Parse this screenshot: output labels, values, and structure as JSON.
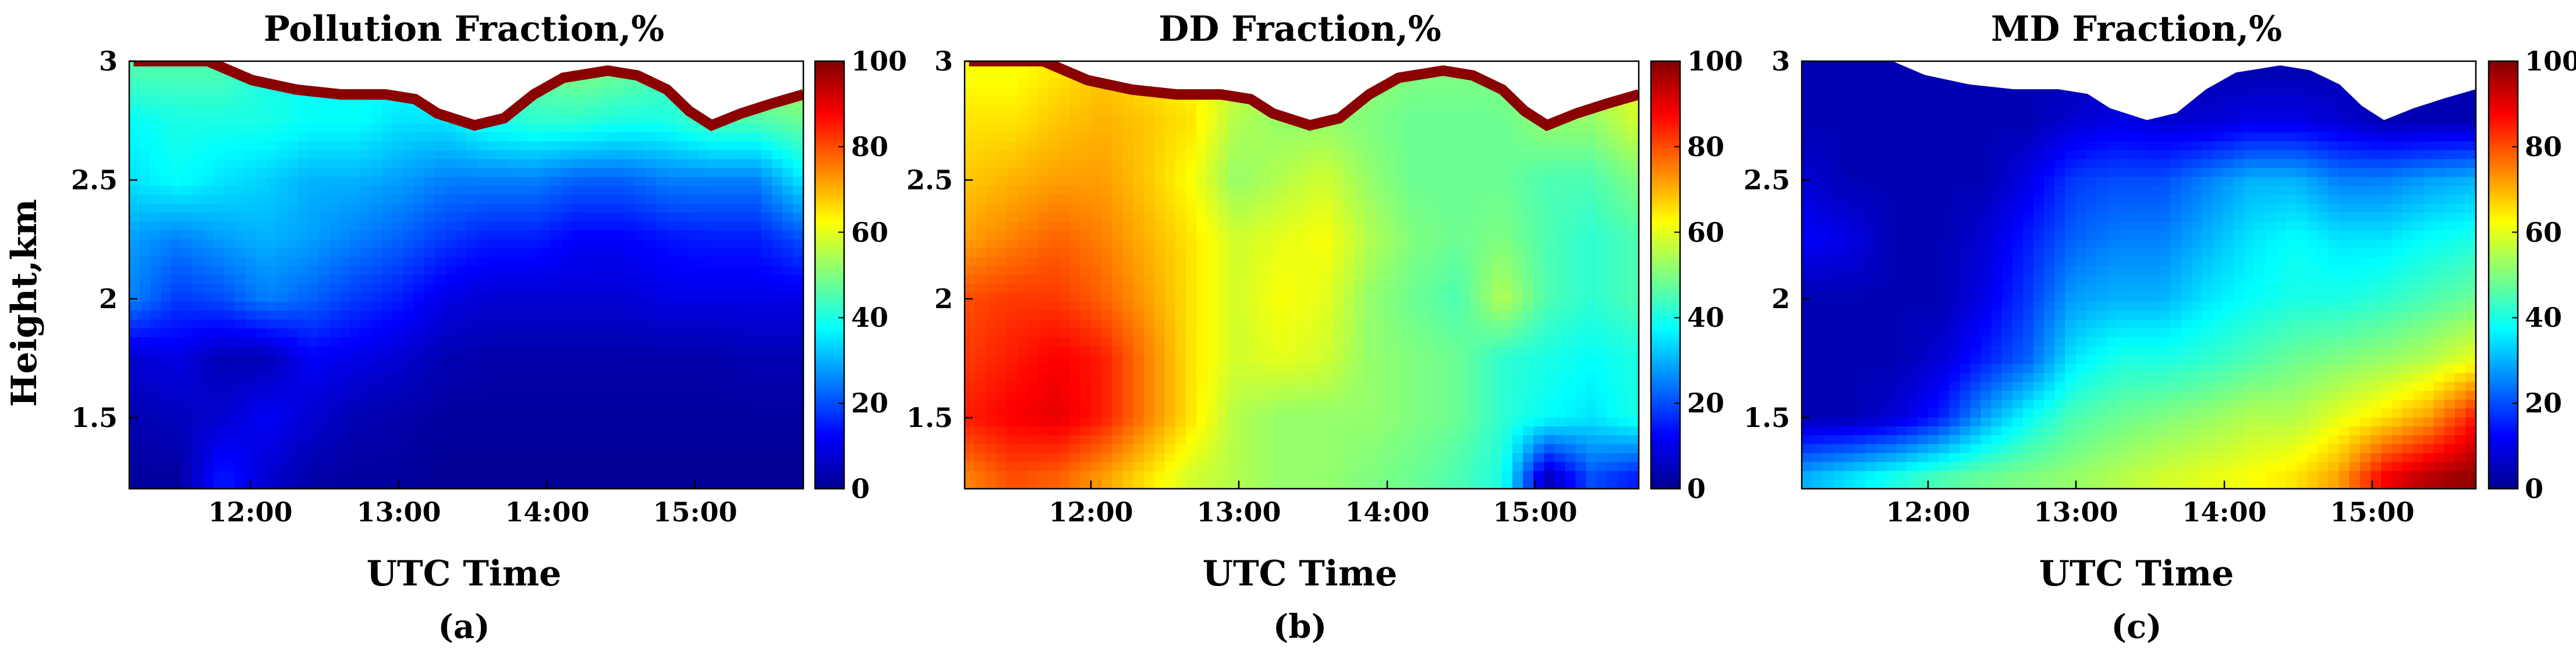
{
  "figure": {
    "y_axis_label": "Height,km",
    "x_axis_label": "UTC Time"
  },
  "chart_data": [
    {
      "type": "heatmap",
      "title": "Pollution Fraction,%",
      "panel_label": "(a)",
      "xlabel": "UTC Time",
      "ylabel": "Height,km",
      "x_ticks": [
        "12:00",
        "13:00",
        "14:00",
        "15:00"
      ],
      "x_tick_hours": [
        12,
        13,
        14,
        15
      ],
      "xlim_hours": [
        11.17,
        15.72
      ],
      "y_ticks": [
        1.5,
        2,
        2.5,
        3
      ],
      "ylim": [
        1.2,
        3.0
      ],
      "colorbar_ticks": [
        0,
        20,
        40,
        60,
        80,
        100
      ],
      "colorbar_range": [
        0,
        100
      ],
      "colormap": "jet",
      "value_grid": {
        "times": [
          11.2,
          11.5,
          11.8,
          12.1,
          12.4,
          12.7,
          13.0,
          13.3,
          13.6,
          13.9,
          14.2,
          14.5,
          14.8,
          15.1,
          15.4,
          15.7
        ],
        "heights": [
          1.25,
          1.5,
          1.75,
          2.0,
          2.25,
          2.5,
          2.75,
          2.95
        ],
        "values": [
          [
            3,
            3,
            15,
            8,
            4,
            3,
            3,
            2,
            2,
            2,
            2,
            2,
            2,
            2,
            2,
            2
          ],
          [
            5,
            6,
            8,
            12,
            8,
            5,
            4,
            3,
            3,
            3,
            3,
            3,
            3,
            3,
            3,
            3
          ],
          [
            8,
            10,
            5,
            5,
            12,
            10,
            8,
            5,
            4,
            4,
            4,
            4,
            4,
            4,
            5,
            5
          ],
          [
            25,
            18,
            20,
            25,
            22,
            18,
            15,
            10,
            8,
            8,
            8,
            8,
            10,
            10,
            10,
            10
          ],
          [
            28,
            25,
            28,
            30,
            28,
            25,
            22,
            18,
            15,
            15,
            12,
            12,
            14,
            15,
            15,
            20
          ],
          [
            35,
            38,
            35,
            33,
            30,
            30,
            28,
            25,
            25,
            25,
            22,
            22,
            25,
            25,
            25,
            35
          ],
          [
            38,
            40,
            40,
            40,
            38,
            38,
            35,
            35,
            40,
            42,
            42,
            40,
            40,
            45,
            45,
            48
          ],
          [
            45,
            45,
            45,
            40,
            38,
            38,
            38,
            38,
            45,
            48,
            50,
            48,
            45,
            50,
            55,
            55
          ]
        ]
      },
      "top_boundary_km": [
        [
          11.2,
          3.0
        ],
        [
          11.7,
          3.0
        ],
        [
          12.0,
          2.92
        ],
        [
          12.3,
          2.88
        ],
        [
          12.6,
          2.86
        ],
        [
          12.9,
          2.86
        ],
        [
          13.1,
          2.84
        ],
        [
          13.25,
          2.78
        ],
        [
          13.5,
          2.73
        ],
        [
          13.7,
          2.76
        ],
        [
          13.9,
          2.86
        ],
        [
          14.1,
          2.93
        ],
        [
          14.4,
          2.96
        ],
        [
          14.6,
          2.94
        ],
        [
          14.8,
          2.88
        ],
        [
          14.95,
          2.79
        ],
        [
          15.1,
          2.73
        ],
        [
          15.3,
          2.78
        ],
        [
          15.5,
          2.82
        ],
        [
          15.72,
          2.86
        ]
      ]
    },
    {
      "type": "heatmap",
      "title": "DD Fraction,%",
      "panel_label": "(b)",
      "xlabel": "UTC Time",
      "ylabel": "",
      "x_ticks": [
        "12:00",
        "13:00",
        "14:00",
        "15:00"
      ],
      "x_tick_hours": [
        12,
        13,
        14,
        15
      ],
      "xlim_hours": [
        11.17,
        15.72
      ],
      "y_ticks": [
        1.5,
        2,
        2.5,
        3
      ],
      "ylim": [
        1.2,
        3.0
      ],
      "colorbar_ticks": [
        0,
        20,
        40,
        60,
        80,
        100
      ],
      "colorbar_range": [
        0,
        100
      ],
      "colormap": "jet",
      "value_grid": {
        "times": [
          11.2,
          11.5,
          11.8,
          12.1,
          12.4,
          12.7,
          13.0,
          13.3,
          13.6,
          13.9,
          14.2,
          14.5,
          14.8,
          15.1,
          15.4,
          15.7
        ],
        "heights": [
          1.25,
          1.5,
          1.75,
          2.0,
          2.25,
          2.5,
          2.75,
          2.95
        ],
        "values": [
          [
            75,
            80,
            78,
            72,
            65,
            58,
            55,
            52,
            52,
            50,
            48,
            45,
            40,
            5,
            20,
            15
          ],
          [
            85,
            88,
            90,
            85,
            75,
            65,
            55,
            52,
            52,
            52,
            50,
            48,
            42,
            38,
            35,
            40
          ],
          [
            82,
            85,
            88,
            85,
            75,
            65,
            58,
            60,
            58,
            52,
            50,
            48,
            42,
            40,
            38,
            40
          ],
          [
            80,
            82,
            82,
            78,
            72,
            65,
            58,
            62,
            60,
            52,
            48,
            45,
            55,
            45,
            42,
            45
          ],
          [
            72,
            75,
            78,
            75,
            70,
            65,
            58,
            60,
            62,
            55,
            50,
            48,
            50,
            45,
            42,
            45
          ],
          [
            68,
            70,
            72,
            72,
            68,
            62,
            52,
            55,
            58,
            52,
            48,
            48,
            48,
            45,
            45,
            50
          ],
          [
            65,
            65,
            68,
            70,
            68,
            65,
            55,
            52,
            52,
            50,
            48,
            48,
            48,
            52,
            52,
            58
          ],
          [
            62,
            62,
            65,
            68,
            65,
            62,
            58,
            55,
            55,
            52,
            50,
            50,
            50,
            55,
            58,
            60
          ]
        ]
      },
      "top_boundary_km": [
        [
          11.2,
          3.0
        ],
        [
          11.7,
          3.0
        ],
        [
          12.0,
          2.92
        ],
        [
          12.3,
          2.88
        ],
        [
          12.6,
          2.86
        ],
        [
          12.9,
          2.86
        ],
        [
          13.1,
          2.84
        ],
        [
          13.25,
          2.78
        ],
        [
          13.5,
          2.73
        ],
        [
          13.7,
          2.76
        ],
        [
          13.9,
          2.86
        ],
        [
          14.1,
          2.93
        ],
        [
          14.4,
          2.96
        ],
        [
          14.6,
          2.94
        ],
        [
          14.8,
          2.88
        ],
        [
          14.95,
          2.79
        ],
        [
          15.1,
          2.73
        ],
        [
          15.3,
          2.78
        ],
        [
          15.5,
          2.82
        ],
        [
          15.72,
          2.86
        ]
      ]
    },
    {
      "type": "heatmap",
      "title": "MD Fraction,%",
      "panel_label": "(c)",
      "xlabel": "UTC Time",
      "ylabel": "",
      "x_ticks": [
        "12:00",
        "13:00",
        "14:00",
        "15:00"
      ],
      "x_tick_hours": [
        12,
        13,
        14,
        15
      ],
      "xlim_hours": [
        11.17,
        15.72
      ],
      "y_ticks": [
        1.5,
        2,
        2.5,
        3
      ],
      "ylim": [
        1.2,
        3.0
      ],
      "colorbar_ticks": [
        0,
        20,
        40,
        60,
        80,
        100
      ],
      "colorbar_range": [
        0,
        100
      ],
      "colormap": "jet",
      "value_grid": {
        "times": [
          11.2,
          11.5,
          11.8,
          12.1,
          12.4,
          12.7,
          13.0,
          13.3,
          13.6,
          13.9,
          14.2,
          14.5,
          14.8,
          15.1,
          15.4,
          15.7
        ],
        "heights": [
          1.25,
          1.5,
          1.75,
          2.0,
          2.25,
          2.5,
          2.75,
          2.95
        ],
        "values": [
          [
            30,
            35,
            40,
            45,
            48,
            50,
            52,
            55,
            58,
            60,
            62,
            65,
            72,
            88,
            95,
            98
          ],
          [
            5,
            5,
            8,
            15,
            28,
            38,
            45,
            48,
            50,
            52,
            55,
            55,
            60,
            65,
            72,
            85
          ],
          [
            5,
            5,
            5,
            8,
            15,
            22,
            35,
            40,
            40,
            42,
            45,
            48,
            50,
            52,
            55,
            60
          ],
          [
            5,
            5,
            5,
            5,
            10,
            18,
            28,
            30,
            30,
            35,
            38,
            40,
            40,
            42,
            45,
            48
          ],
          [
            12,
            10,
            5,
            5,
            8,
            15,
            22,
            25,
            25,
            30,
            35,
            38,
            35,
            35,
            38,
            40
          ],
          [
            8,
            5,
            5,
            5,
            5,
            10,
            18,
            20,
            20,
            25,
            30,
            30,
            25,
            25,
            28,
            30
          ],
          [
            5,
            5,
            5,
            5,
            5,
            5,
            8,
            10,
            8,
            8,
            10,
            10,
            8,
            5,
            5,
            5
          ],
          [
            5,
            5,
            5,
            5,
            5,
            5,
            5,
            5,
            5,
            5,
            5,
            5,
            5,
            5,
            5,
            5
          ]
        ]
      },
      "top_boundary_km": [
        [
          11.2,
          3.0
        ],
        [
          11.7,
          3.0
        ],
        [
          12.0,
          2.92
        ],
        [
          12.3,
          2.88
        ],
        [
          12.6,
          2.86
        ],
        [
          12.9,
          2.86
        ],
        [
          13.1,
          2.84
        ],
        [
          13.25,
          2.78
        ],
        [
          13.5,
          2.73
        ],
        [
          13.7,
          2.76
        ],
        [
          13.9,
          2.86
        ],
        [
          14.1,
          2.93
        ],
        [
          14.4,
          2.96
        ],
        [
          14.6,
          2.94
        ],
        [
          14.8,
          2.88
        ],
        [
          14.95,
          2.79
        ],
        [
          15.1,
          2.73
        ],
        [
          15.3,
          2.78
        ],
        [
          15.5,
          2.82
        ],
        [
          15.72,
          2.86
        ]
      ]
    }
  ]
}
